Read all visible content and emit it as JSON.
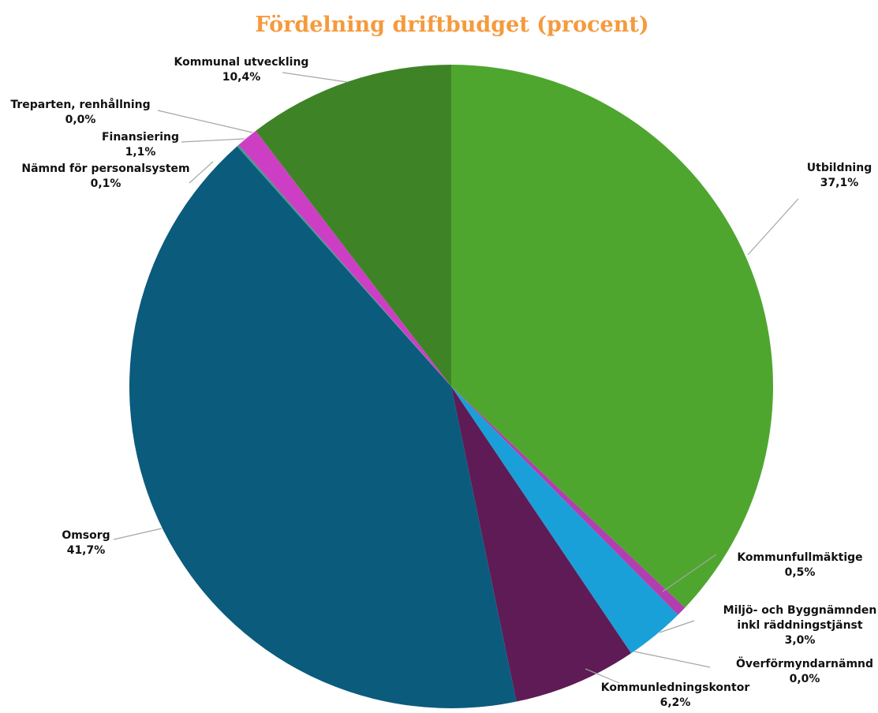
{
  "title": "Fördelning driftbudget (procent)",
  "colors": {
    "title": "#f59a3d",
    "leader": "#a6a6a6",
    "label": "#111111"
  },
  "chart_data": {
    "type": "pie",
    "title": "Fördelning driftbudget (procent)",
    "start_angle_deg": 0,
    "direction": "clockwise",
    "unit": "%",
    "slices": [
      {
        "name": "Utbildning",
        "value": 37.1,
        "label": "37,1%",
        "color": "#4fa62f"
      },
      {
        "name": "Kommunfullmäktige",
        "value": 0.5,
        "label": "0,5%",
        "color": "#b23fb0"
      },
      {
        "name": "Miljö- och Byggnämnden inkl räddningstjänst",
        "value": 3.0,
        "label": "3,0%",
        "color": "#1aa0d8"
      },
      {
        "name": "Överförmyndarnämnd",
        "value": 0.0,
        "label": "0,0%",
        "color": "#8c7aa8"
      },
      {
        "name": "Kommunledningskontor",
        "value": 6.2,
        "label": "6,2%",
        "color": "#5e1b55"
      },
      {
        "name": "Omsorg",
        "value": 41.7,
        "label": "41,7%",
        "color": "#0b5b7d"
      },
      {
        "name": "Nämnd för personalsystem",
        "value": 0.1,
        "label": "0,1%",
        "color": "#3a9d88"
      },
      {
        "name": "Finansiering",
        "value": 1.1,
        "label": "1,1%",
        "color": "#cc3fc4"
      },
      {
        "name": "Treparten, renhållning",
        "value": 0.0,
        "label": "0,0%",
        "color": "#9a9a9a"
      },
      {
        "name": "Kommunal utveckling",
        "value": 10.4,
        "label": "10,4%",
        "color": "#3e8427"
      }
    ]
  }
}
